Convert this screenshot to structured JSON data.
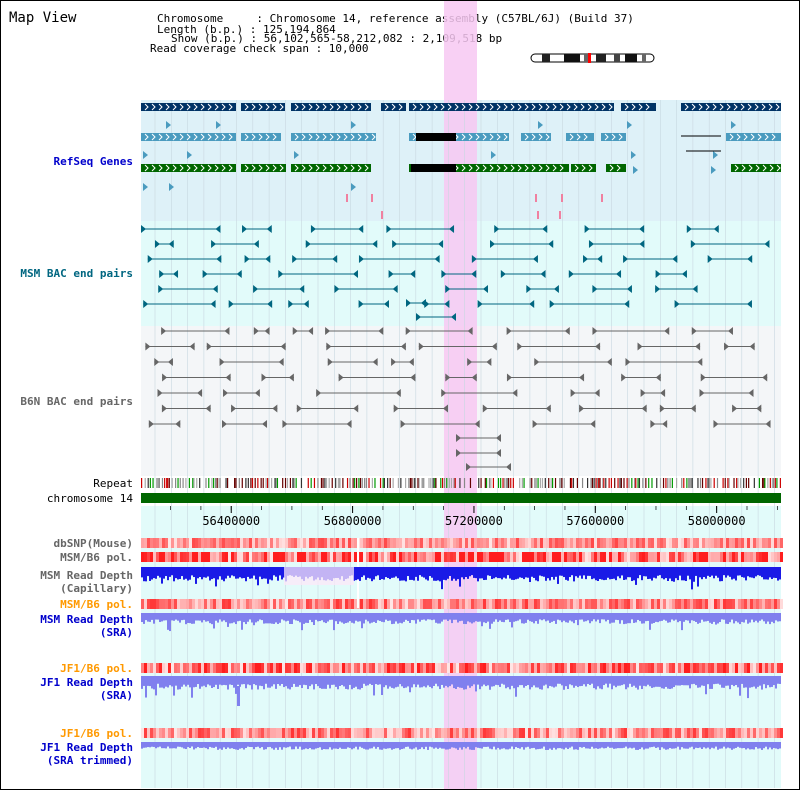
{
  "header": {
    "title": "Map View",
    "info_lines": [
      "Chromosome     : Chromosome 14, reference assembly (C57BL/6J) (Build 37)",
      "Length (b.p.) : 125,194,864",
      "Show (b.p.) : 56,102,565-58,212,082 : 2,109,518 bp",
      "Read coverage check span : 10,000"
    ]
  },
  "tracks": {
    "refseq": "RefSeq Genes",
    "msm_bac": "MSM BAC end pairs",
    "b6n_bac": "B6N BAC end pairs",
    "repeat": "Repeat",
    "chromosome": "chromosome 14",
    "dbsnp": "dbSNP(Mouse)",
    "msm_b6_pol_1": "MSM/B6 pol.",
    "msm_depth_cap": "MSM Read Depth\n(Capillary)",
    "msm_b6_pol_2": "MSM/B6 pol.",
    "msm_depth_sra": "MSM Read Depth\n(SRA)",
    "jf1_b6_pol_1": "JF1/B6 pol.",
    "jf1_depth_sra": "JF1 Read Depth\n(SRA)",
    "jf1_b6_pol_2": "JF1/B6 pol.",
    "jf1_depth_trim": "JF1 Read Depth\n(SRA trimmed)"
  },
  "ruler": {
    "ticks": [
      "56400000",
      "56800000",
      "57200000",
      "57600000",
      "58000000"
    ],
    "tick_values": [
      56400000,
      56800000,
      57200000,
      57600000,
      58000000
    ],
    "range": [
      56102565,
      58212082
    ]
  },
  "colors": {
    "label_blue": "#0000cc",
    "label_teal": "#006680",
    "label_gray": "#666666",
    "label_orange": "#ff9900",
    "refseq_bg": "#def1f8",
    "msm_bg": "#e2fbfa",
    "b6n_bg": "#f4f6f8",
    "highlight": "#f7c8f2",
    "chromosome": "#006600",
    "gene_dark": "#003366",
    "gene_mid": "#4a9bbf",
    "gene_green": "#006600",
    "depth_dark": "#1a1ae6",
    "depth_light": "#8080ee"
  }
}
